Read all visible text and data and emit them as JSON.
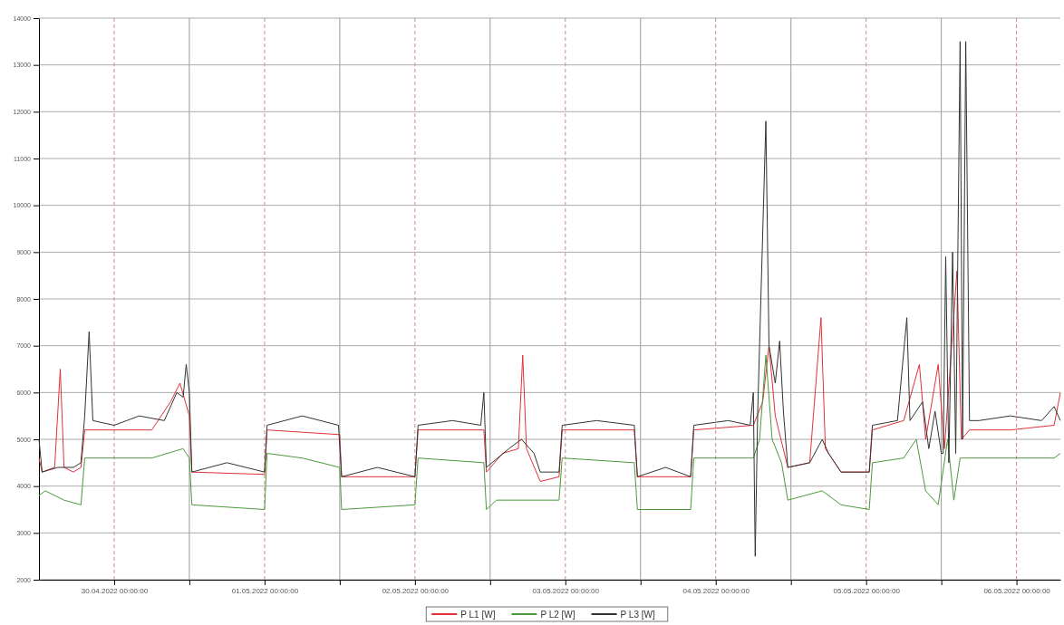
{
  "chart_data": {
    "type": "line",
    "xlim": [
      "2022-04-29T12:00",
      "2022-05-06T07:00"
    ],
    "ylim": [
      2000,
      14000
    ],
    "xticks": [
      {
        "value": "2022-04-30T00:00",
        "label": "30.04.2022 00:00:00"
      },
      {
        "value": "2022-04-30T12:00",
        "label": null
      },
      {
        "value": "2022-05-01T00:00",
        "label": "01.05.2022 00:00:00"
      },
      {
        "value": "2022-05-01T12:00",
        "label": null
      },
      {
        "value": "2022-05-02T00:00",
        "label": "02.05.2022 00:00:00"
      },
      {
        "value": "2022-05-02T12:00",
        "label": null
      },
      {
        "value": "2022-05-03T00:00",
        "label": "03.05.2022 00:00:00"
      },
      {
        "value": "2022-05-03T12:00",
        "label": null
      },
      {
        "value": "2022-05-04T00:00",
        "label": "04.05.2022 00:00:00"
      },
      {
        "value": "2022-05-04T12:00",
        "label": null
      },
      {
        "value": "2022-05-05T00:00",
        "label": "05.05.2022 00:00:00"
      },
      {
        "value": "2022-05-05T12:00",
        "label": null
      },
      {
        "value": "2022-05-06T00:00",
        "label": "06.05.2022 00:00:00"
      }
    ],
    "yticks": [
      2000,
      3000,
      4000,
      5000,
      6000,
      7000,
      8000,
      9000,
      10000,
      11000,
      12000,
      13000,
      14000
    ],
    "grid": true,
    "legend": "bottom",
    "line_style": "solid",
    "marker": "none",
    "series": [
      {
        "name": "P L1 [W]",
        "color": "#e0303a",
        "x": [
          "2022-04-29T12:00",
          "2022-04-29T12:30",
          "2022-04-29T14:30",
          "2022-04-29T15:24",
          "2022-04-29T16:00",
          "2022-04-29T17:30",
          "2022-04-29T18:42",
          "2022-04-29T19:18",
          "2022-04-30T00:00",
          "2022-04-30T06:00",
          "2022-04-30T09:00",
          "2022-04-30T10:30",
          "2022-04-30T12:00",
          "2022-04-30T12:24",
          "2022-05-01T00:00",
          "2022-05-01T00:24",
          "2022-05-01T12:00",
          "2022-05-01T12:18",
          "2022-05-02T00:00",
          "2022-05-02T00:30",
          "2022-05-02T11:00",
          "2022-05-02T11:24",
          "2022-05-02T14:00",
          "2022-05-02T16:30",
          "2022-05-02T17:12",
          "2022-05-02T17:48",
          "2022-05-02T20:00",
          "2022-05-02T23:00",
          "2022-05-02T23:30",
          "2022-05-03T11:00",
          "2022-05-03T11:30",
          "2022-05-03T20:00",
          "2022-05-03T20:30",
          "2022-05-04T06:00",
          "2022-05-04T07:30",
          "2022-05-04T08:30",
          "2022-05-04T09:30",
          "2022-05-04T11:30",
          "2022-05-04T15:00",
          "2022-05-04T16:48",
          "2022-05-04T17:30",
          "2022-05-04T20:00",
          "2022-05-05T00:30",
          "2022-05-05T01:00",
          "2022-05-05T06:00",
          "2022-05-05T08:30",
          "2022-05-05T09:30",
          "2022-05-05T11:30",
          "2022-05-05T12:30",
          "2022-05-05T14:30",
          "2022-05-05T15:12",
          "2022-05-05T16:30",
          "2022-05-05T23:00",
          "2022-05-06T06:00",
          "2022-05-06T07:00"
        ],
        "values": [
          4600,
          4300,
          4400,
          6500,
          4400,
          4300,
          4400,
          5200,
          5200,
          5200,
          5800,
          6200,
          5500,
          4300,
          4250,
          5200,
          5100,
          4200,
          4200,
          5200,
          5200,
          4300,
          4700,
          4800,
          6800,
          4800,
          4100,
          4200,
          5200,
          5200,
          4200,
          4200,
          5200,
          5300,
          5800,
          7000,
          5500,
          4400,
          4500,
          7600,
          4800,
          4300,
          4300,
          5200,
          5400,
          6600,
          5000,
          6600,
          4800,
          8600,
          5000,
          5200,
          5200,
          5300,
          6000
        ]
      },
      {
        "name": "P L2 [W]",
        "color": "#4a9a3a",
        "x": [
          "2022-04-29T12:00",
          "2022-04-29T13:00",
          "2022-04-29T16:00",
          "2022-04-29T18:42",
          "2022-04-29T19:18",
          "2022-04-30T00:00",
          "2022-04-30T06:00",
          "2022-04-30T11:00",
          "2022-04-30T12:00",
          "2022-04-30T12:24",
          "2022-05-01T00:00",
          "2022-05-01T00:24",
          "2022-05-01T06:00",
          "2022-05-01T12:00",
          "2022-05-01T12:18",
          "2022-05-02T00:00",
          "2022-05-02T00:30",
          "2022-05-02T11:00",
          "2022-05-02T11:24",
          "2022-05-02T13:00",
          "2022-05-02T18:00",
          "2022-05-02T23:00",
          "2022-05-02T23:30",
          "2022-05-03T11:00",
          "2022-05-03T11:30",
          "2022-05-03T20:00",
          "2022-05-03T20:30",
          "2022-05-04T06:00",
          "2022-05-04T07:00",
          "2022-05-04T08:00",
          "2022-05-04T09:00",
          "2022-05-04T10:30",
          "2022-05-04T11:30",
          "2022-05-04T17:00",
          "2022-05-04T20:00",
          "2022-05-05T00:30",
          "2022-05-05T01:00",
          "2022-05-05T06:00",
          "2022-05-05T08:00",
          "2022-05-05T09:30",
          "2022-05-05T11:30",
          "2022-05-05T13:00",
          "2022-05-05T14:00",
          "2022-05-05T15:00",
          "2022-05-05T16:30",
          "2022-05-05T23:00",
          "2022-05-06T06:00",
          "2022-05-06T07:00"
        ],
        "values": [
          3800,
          3900,
          3700,
          3600,
          4600,
          4600,
          4600,
          4800,
          4600,
          3600,
          3500,
          4700,
          4600,
          4400,
          3500,
          3600,
          4600,
          4500,
          3500,
          3700,
          3700,
          3700,
          4600,
          4500,
          3500,
          3500,
          4600,
          4600,
          5000,
          6800,
          5000,
          4500,
          3700,
          3900,
          3600,
          3500,
          4500,
          4600,
          5000,
          3900,
          3600,
          5000,
          3700,
          4600,
          4600,
          4600,
          4600,
          4700
        ]
      },
      {
        "name": "P L3 [W]",
        "color": "#333333",
        "x": [
          "2022-04-29T12:00",
          "2022-04-29T12:30",
          "2022-04-29T15:00",
          "2022-04-29T17:30",
          "2022-04-29T18:42",
          "2022-04-29T19:18",
          "2022-04-29T20:00",
          "2022-04-29T20:36",
          "2022-04-30T00:00",
          "2022-04-30T04:00",
          "2022-04-30T08:00",
          "2022-04-30T10:00",
          "2022-04-30T11:00",
          "2022-04-30T11:30",
          "2022-04-30T12:00",
          "2022-04-30T12:24",
          "2022-04-30T18:00",
          "2022-05-01T00:00",
          "2022-05-01T00:24",
          "2022-05-01T06:00",
          "2022-05-01T11:48",
          "2022-05-01T12:18",
          "2022-05-01T18:00",
          "2022-05-02T00:00",
          "2022-05-02T00:30",
          "2022-05-02T06:00",
          "2022-05-02T10:30",
          "2022-05-02T11:00",
          "2022-05-02T11:24",
          "2022-05-02T15:00",
          "2022-05-02T17:00",
          "2022-05-02T19:00",
          "2022-05-02T20:00",
          "2022-05-02T23:00",
          "2022-05-02T23:30",
          "2022-05-03T05:00",
          "2022-05-03T11:00",
          "2022-05-03T11:30",
          "2022-05-03T16:00",
          "2022-05-03T20:00",
          "2022-05-03T20:30",
          "2022-05-04T02:00",
          "2022-05-04T05:30",
          "2022-05-04T06:00",
          "2022-05-04T06:18",
          "2022-05-04T06:42",
          "2022-05-04T08:00",
          "2022-05-04T08:30",
          "2022-05-04T09:30",
          "2022-05-04T10:12",
          "2022-05-04T10:48",
          "2022-05-04T11:30",
          "2022-05-04T15:00",
          "2022-05-04T17:00",
          "2022-05-04T18:00",
          "2022-05-04T20:00",
          "2022-05-05T00:30",
          "2022-05-05T01:00",
          "2022-05-05T05:00",
          "2022-05-05T06:30",
          "2022-05-05T07:00",
          "2022-05-05T09:00",
          "2022-05-05T10:00",
          "2022-05-05T11:00",
          "2022-05-05T12:00",
          "2022-05-05T12:18",
          "2022-05-05T12:42",
          "2022-05-05T13:12",
          "2022-05-05T13:48",
          "2022-05-05T14:18",
          "2022-05-05T15:00",
          "2022-05-05T15:24",
          "2022-05-05T15:54",
          "2022-05-05T16:30",
          "2022-05-05T18:00",
          "2022-05-05T23:00",
          "2022-05-06T04:00",
          "2022-05-06T06:00",
          "2022-05-06T07:00"
        ],
        "values": [
          5000,
          4300,
          4400,
          4400,
          4500,
          5500,
          7300,
          5400,
          5300,
          5500,
          5400,
          6000,
          5900,
          6600,
          6000,
          4300,
          4500,
          4300,
          5300,
          5500,
          5300,
          4200,
          4400,
          4200,
          5300,
          5400,
          5300,
          6000,
          4400,
          4800,
          5000,
          4700,
          4300,
          4300,
          5300,
          5400,
          5300,
          4200,
          4400,
          4200,
          5300,
          5400,
          5300,
          6000,
          2500,
          5600,
          11800,
          7000,
          6200,
          7100,
          5600,
          4400,
          4500,
          5000,
          4700,
          4300,
          4300,
          5300,
          5400,
          7600,
          5400,
          5800,
          4800,
          5600,
          4700,
          4700,
          8900,
          4500,
          9000,
          4700,
          13500,
          5000,
          13500,
          5400,
          5400,
          5500,
          5400,
          5700,
          5400
        ]
      }
    ]
  }
}
